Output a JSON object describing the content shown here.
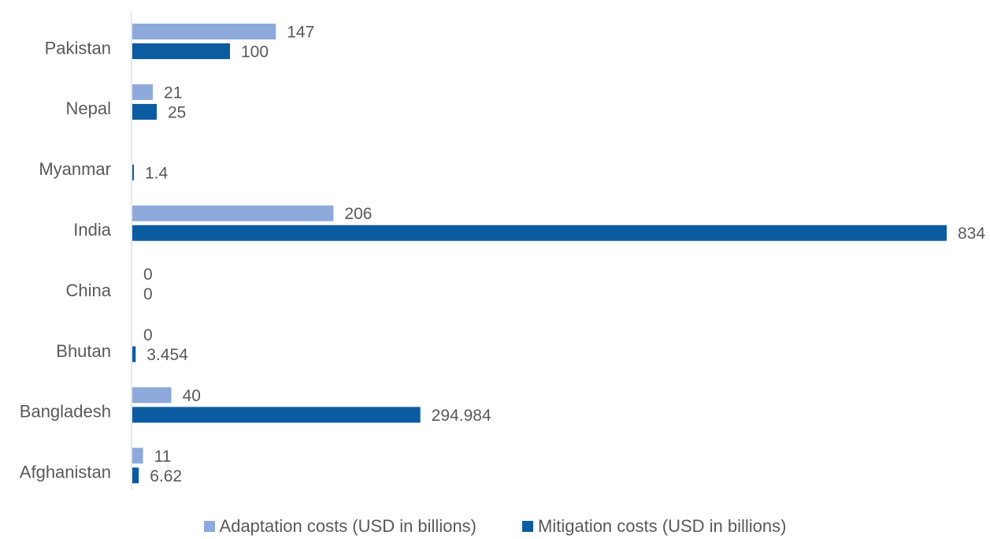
{
  "chart_data": {
    "type": "bar",
    "orientation": "horizontal",
    "categories": [
      "Pakistan",
      "Nepal",
      "Myanmar",
      "India",
      "China",
      "Bhutan",
      "Bangladesh",
      "Afghanistan"
    ],
    "series": [
      {
        "name": "Adaptation costs (USD in billions)",
        "color": "#8EA9DB",
        "values": [
          147,
          21,
          null,
          206,
          0,
          0,
          40,
          11
        ],
        "labels": [
          "147",
          "21",
          "",
          "206",
          "0",
          "0",
          "40",
          "11"
        ]
      },
      {
        "name": "Mitigation costs (USD in billions)",
        "color": "#0B5CA1",
        "values": [
          100,
          25,
          1.4,
          834,
          0,
          3.454,
          294.984,
          6.62
        ],
        "labels": [
          "100",
          "25",
          "1.4",
          "834",
          "0",
          "3.454",
          "294.984",
          "6.62"
        ]
      }
    ],
    "title": "",
    "xlabel": "",
    "ylabel": "",
    "xlim": [
      0,
      834
    ],
    "grid": false,
    "legend": "bottom"
  }
}
